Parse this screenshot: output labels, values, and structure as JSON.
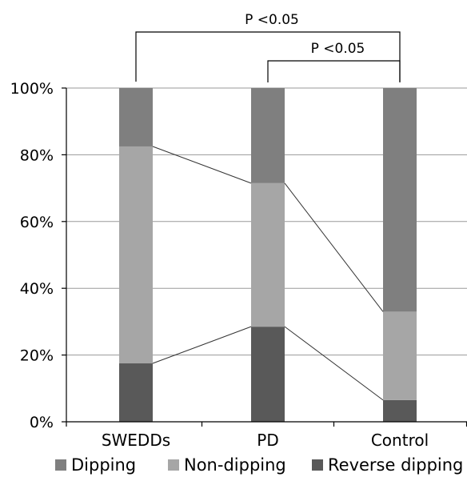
{
  "chart_data": {
    "type": "bar",
    "stacked": true,
    "stack_order_bottom_to_top": [
      "Reverse dipping",
      "Non-dipping",
      "Dipping"
    ],
    "categories": [
      "SWEDDs",
      "PD",
      "Control"
    ],
    "series": [
      {
        "name": "Dipping",
        "values": [
          17.5,
          28.5,
          67
        ],
        "color": "#7f7f7f"
      },
      {
        "name": "Non-dipping",
        "values": [
          65,
          43,
          26.5
        ],
        "color": "#a6a6a6"
      },
      {
        "name": "Reverse dipping",
        "values": [
          17.5,
          28.5,
          6.5
        ],
        "color": "#595959"
      }
    ],
    "connector_lines": true,
    "ylim": [
      0,
      100
    ],
    "yticks": [
      "0%",
      "20%",
      "40%",
      "60%",
      "80%",
      "100%"
    ],
    "grid": true,
    "legend_position": "bottom",
    "significance": [
      {
        "from": "SWEDDs",
        "to": "Control",
        "label": "P  <0.05"
      },
      {
        "from": "PD",
        "to": "Control",
        "label": "P  <0.05"
      }
    ]
  }
}
